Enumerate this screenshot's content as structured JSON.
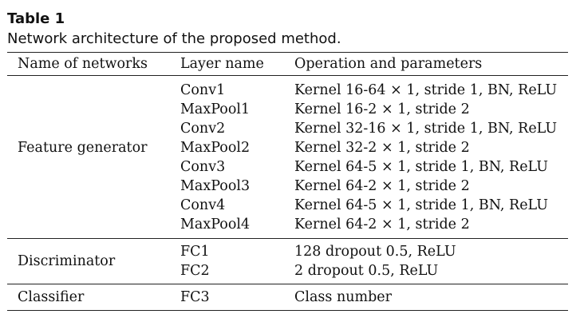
{
  "caption": {
    "label": "Table 1",
    "text": "Network architecture of the proposed method."
  },
  "table": {
    "headers": [
      "Name of networks",
      "Layer name",
      "Operation and parameters"
    ],
    "groups": [
      {
        "name": "Feature generator",
        "rows": [
          {
            "layer": "Conv1",
            "op": "Kernel 16-64 × 1, stride 1, BN, ReLU"
          },
          {
            "layer": "MaxPool1",
            "op": "Kernel 16-2 × 1, stride 2"
          },
          {
            "layer": "Conv2",
            "op": "Kernel 32-16 × 1, stride 1, BN, ReLU"
          },
          {
            "layer": "MaxPool2",
            "op": "Kernel 32-2 × 1, stride 2"
          },
          {
            "layer": "Conv3",
            "op": "Kernel 64-5 × 1, stride 1, BN, ReLU"
          },
          {
            "layer": "MaxPool3",
            "op": "Kernel 64-2 × 1, stride 2"
          },
          {
            "layer": "Conv4",
            "op": "Kernel 64-5 × 1, stride 1, BN, ReLU"
          },
          {
            "layer": "MaxPool4",
            "op": "Kernel 64-2 × 1, stride 2"
          }
        ]
      },
      {
        "name": "Discriminator",
        "rows": [
          {
            "layer": "FC1",
            "op": "128 dropout 0.5, ReLU"
          },
          {
            "layer": "FC2",
            "op": "2 dropout 0.5, ReLU"
          }
        ]
      },
      {
        "name": "Classifier",
        "rows": [
          {
            "layer": "FC3",
            "op": "Class number"
          }
        ]
      }
    ]
  }
}
